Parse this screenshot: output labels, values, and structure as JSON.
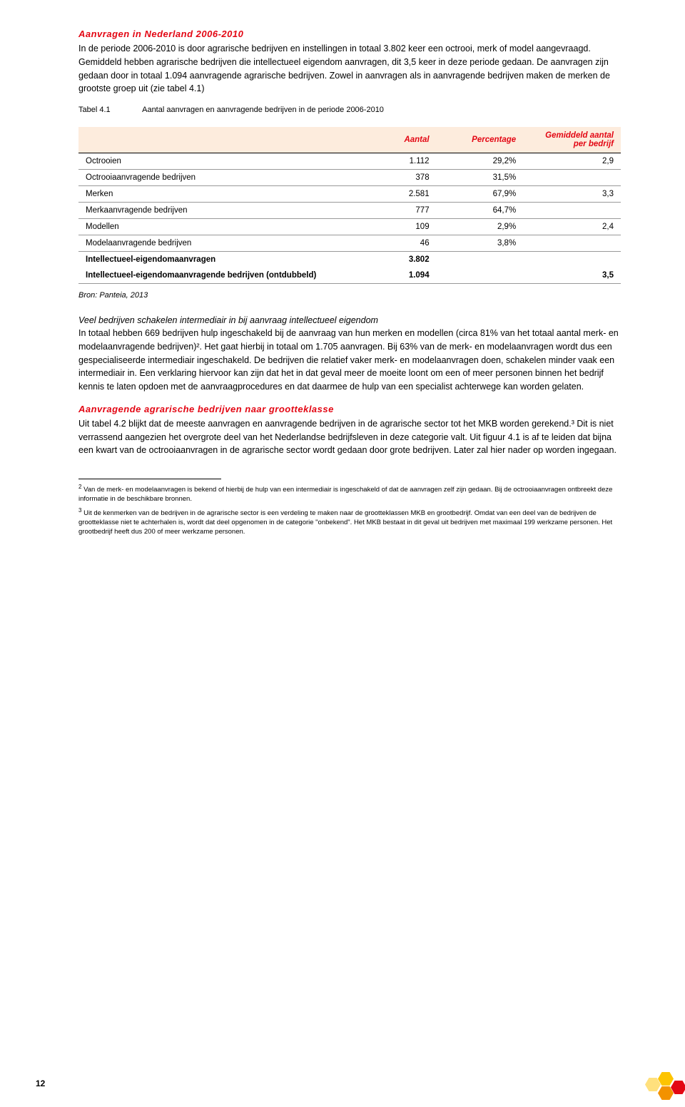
{
  "section1": {
    "heading": "Aanvragen in Nederland 2006-2010",
    "body": "In de periode 2006-2010 is door agrarische bedrijven en instellingen in totaal 3.802 keer een octrooi, merk of model aangevraagd. Gemiddeld hebben agrarische bedrijven die intellectueel eigendom aanvragen, dit 3,5 keer in deze periode gedaan. De aanvragen zijn gedaan door in totaal 1.094 aanvragende agrarische bedrijven. Zowel in aanvragen als in aanvragende bedrijven maken de merken de grootste groep uit (zie tabel 4.1)"
  },
  "table": {
    "caption_label": "Tabel 4.1",
    "caption_text": "Aantal aanvragen en aanvragende bedrijven in de periode 2006-2010",
    "headers": {
      "col1": "",
      "col2": "Aantal",
      "col3": "Percentage",
      "col4": "Gemiddeld aantal per bedrijf"
    },
    "rows": [
      {
        "label": "Octrooien",
        "c1": "1.112",
        "c2": "29,2%",
        "c3": "2,9"
      },
      {
        "label": "Octrooiaanvragende bedrijven",
        "c1": "378",
        "c2": "31,5%",
        "c3": ""
      },
      {
        "label": "Merken",
        "c1": "2.581",
        "c2": "67,9%",
        "c3": "3,3"
      },
      {
        "label": "Merkaanvragende bedrijven",
        "c1": "777",
        "c2": "64,7%",
        "c3": ""
      },
      {
        "label": "Modellen",
        "c1": "109",
        "c2": "2,9%",
        "c3": "2,4"
      },
      {
        "label": "Modelaanvragende bedrijven",
        "c1": "46",
        "c2": "3,8%",
        "c3": ""
      },
      {
        "label": "Intellectueel-eigendomaanvragen",
        "c1": "3.802",
        "c2": "",
        "c3": "",
        "bold": true
      },
      {
        "label": "Intellectueel-eigendomaanvragende bedrijven (ontdubbeld)",
        "c1": "1.094",
        "c2": "",
        "c3": "3,5",
        "bold": true
      }
    ],
    "source": "Bron: Panteia, 2013"
  },
  "section2": {
    "sub": "Veel bedrijven schakelen intermediair in bij aanvraag intellectueel eigendom",
    "body": "In totaal hebben 669 bedrijven hulp ingeschakeld bij de aanvraag van hun merken en modellen (circa 81% van het totaal aantal merk- en modelaanvragende bedrijven)². Het gaat hierbij in totaal om 1.705 aanvragen. Bij 63% van de merk- en modelaanvragen wordt dus een gespecialiseerde intermediair ingeschakeld. De bedrijven die relatief vaker merk- en modelaanvragen doen, schakelen minder vaak een intermediair in. Een verklaring hiervoor kan zijn dat het in dat geval meer de moeite loont om een of meer personen binnen het bedrijf kennis te laten opdoen met de aanvraagprocedures en dat daarmee de hulp van een specialist achterwege kan worden gelaten."
  },
  "section3": {
    "heading": "Aanvragende agrarische bedrijven naar grootteklasse",
    "body": "Uit tabel 4.2 blijkt dat de meeste aanvragen en aanvragende bedrijven in de agrarische sector tot het MKB worden gerekend.³ Dit is niet verrassend aangezien het overgrote deel van het Nederlandse bedrijfsleven in deze categorie valt. Uit figuur 4.1 is af te leiden dat bijna een kwart van de octrooiaanvragen in de agrarische sector wordt gedaan door grote bedrijven. Later zal hier nader op worden ingegaan."
  },
  "footnotes": {
    "f2": "Van de merk- en modelaanvragen is bekend of hierbij de hulp van een intermediair is ingeschakeld of dat de aanvragen zelf zijn gedaan. Bij de octrooiaanvragen ontbreekt deze informatie in de beschikbare bronnen.",
    "f3": "Uit de kenmerken van de bedrijven in de agrarische sector is een verdeling te maken naar de grootteklassen MKB en grootbedrijf. Omdat van een deel van de bedrijven de grootteklasse niet te achterhalen is, wordt dat deel opgenomen in de categorie \"onbekend\". Het MKB bestaat in dit geval uit bedrijven met maximaal 199 werkzame personen. Het grootbedrijf heeft dus 200 of meer werkzame personen."
  },
  "page_number": "12",
  "colors": {
    "hex1": "#e30613",
    "hex2": "#f39200",
    "hex3": "#fdc400",
    "hex4": "#ffe07d"
  }
}
